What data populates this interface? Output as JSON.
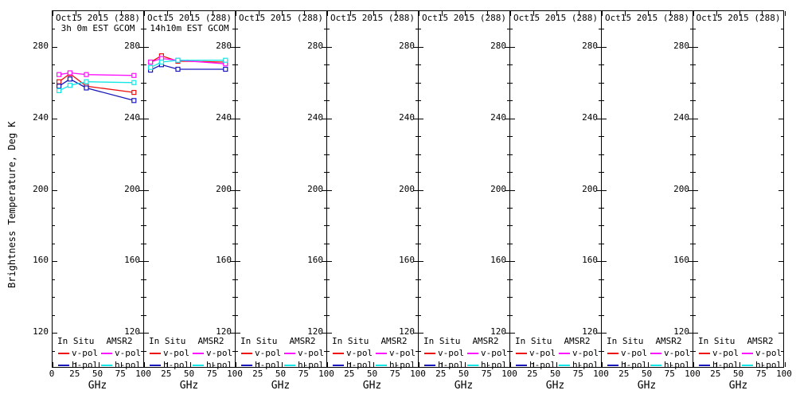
{
  "figure": {
    "ylabel": "Brightness Temperature, Deg K",
    "xlabel": "GHz",
    "background": "#ffffff",
    "axis_color": "#000000",
    "y_ticks": [
      280,
      240,
      200,
      160,
      120
    ],
    "x_ticks": [
      0,
      25,
      50,
      75,
      100
    ],
    "y_range": [
      100,
      300
    ],
    "x_range": [
      0,
      100
    ],
    "series_colors": {
      "insitu_v": "#ee1010",
      "insitu_h": "#1717bb",
      "amsr2_v": "#ff12ff",
      "amsr2_h": "#12e6e6"
    }
  },
  "legend": {
    "col1_header": "In Situ",
    "col2_header": "AMSR2",
    "v_label": "v-pol",
    "h_label": "h-pol"
  },
  "chart_data": [
    {
      "type": "line",
      "title": "Oct15 2015 (288)",
      "subtitle": "3h 0m EST GCOM",
      "xlabel": "GHz",
      "x": [
        7,
        19,
        37,
        89
      ],
      "series": [
        {
          "name": "In Situ v-pol",
          "key": "insitu_v",
          "values": [
            260.5,
            265,
            258,
            254.5
          ]
        },
        {
          "name": "In Situ h-pol",
          "key": "insitu_h",
          "values": [
            258,
            262,
            257,
            250
          ]
        },
        {
          "name": "AMSR2 v-pol",
          "key": "amsr2_v",
          "values": [
            264.5,
            265.5,
            264.5,
            264
          ]
        },
        {
          "name": "AMSR2 h-pol",
          "key": "amsr2_h",
          "values": [
            255.5,
            258.5,
            260.5,
            260
          ]
        }
      ]
    },
    {
      "type": "line",
      "title": "Oct15 2015 (288)",
      "subtitle": "14h10m EST GCOM",
      "xlabel": "GHz",
      "x": [
        7,
        19,
        37,
        89
      ],
      "series": [
        {
          "name": "In Situ v-pol",
          "key": "insitu_v",
          "values": [
            271.5,
            275,
            272,
            271.5
          ]
        },
        {
          "name": "In Situ h-pol",
          "key": "insitu_h",
          "values": [
            267,
            270,
            267.5,
            267.5
          ]
        },
        {
          "name": "AMSR2 v-pol",
          "key": "amsr2_v",
          "values": [
            271.5,
            273.5,
            272.5,
            270.5
          ]
        },
        {
          "name": "AMSR2 h-pol",
          "key": "amsr2_h",
          "values": [
            268.5,
            271.5,
            272.5,
            272.5
          ]
        }
      ]
    },
    {
      "type": "line",
      "title": "Oct15 2015 (288)",
      "subtitle": "",
      "xlabel": "GHz",
      "x": [],
      "series": []
    },
    {
      "type": "line",
      "title": "Oct15 2015 (288)",
      "subtitle": "",
      "xlabel": "GHz",
      "x": [],
      "series": []
    },
    {
      "type": "line",
      "title": "Oct15 2015 (288)",
      "subtitle": "",
      "xlabel": "GHz",
      "x": [],
      "series": []
    },
    {
      "type": "line",
      "title": "Oct15 2015 (288)",
      "subtitle": "",
      "xlabel": "GHz",
      "x": [],
      "series": []
    },
    {
      "type": "line",
      "title": "Oct15 2015 (288)",
      "subtitle": "",
      "xlabel": "GHz",
      "x": [],
      "series": []
    },
    {
      "type": "line",
      "title": "Oct15 2015 (288)",
      "subtitle": "",
      "xlabel": "GHz",
      "x": [],
      "series": []
    }
  ]
}
